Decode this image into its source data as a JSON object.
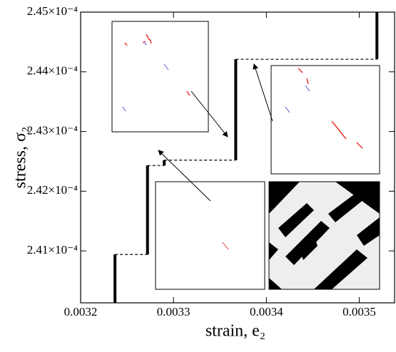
{
  "chart_data": {
    "type": "line",
    "x_label": "strain, e₂",
    "y_label": "stress, σ₂",
    "series": [
      {
        "color": "#000000",
        "x": [
          0.003237,
          0.003237,
          0.003272,
          0.003272,
          0.00329,
          0.00329,
          0.003367,
          0.003367,
          0.003519,
          0.003519
        ],
        "values": [
          0.00024013,
          0.00024094,
          0.00024094,
          0.00024243,
          0.00024243,
          0.00024252,
          0.00024252,
          0.00024421,
          0.00024421,
          0.000245
        ]
      }
    ],
    "xlim": [
      0.0032,
      0.003538
    ],
    "xticks": [
      0.0032,
      0.0033,
      0.0034,
      0.0035
    ],
    "ylim": [
      0.00024013,
      0.000245
    ],
    "yticks": [
      {
        "value": 0.000241,
        "label": "2.41×10⁻⁴"
      },
      {
        "value": 0.000242,
        "label": "2.42×10⁻⁴"
      },
      {
        "value": 0.000243,
        "label": "2.43×10⁻⁴"
      },
      {
        "value": 0.000244,
        "label": "2.44×10⁻⁴"
      },
      {
        "value": 0.000245,
        "label": "2.45×10⁻⁴"
      }
    ]
  }
}
